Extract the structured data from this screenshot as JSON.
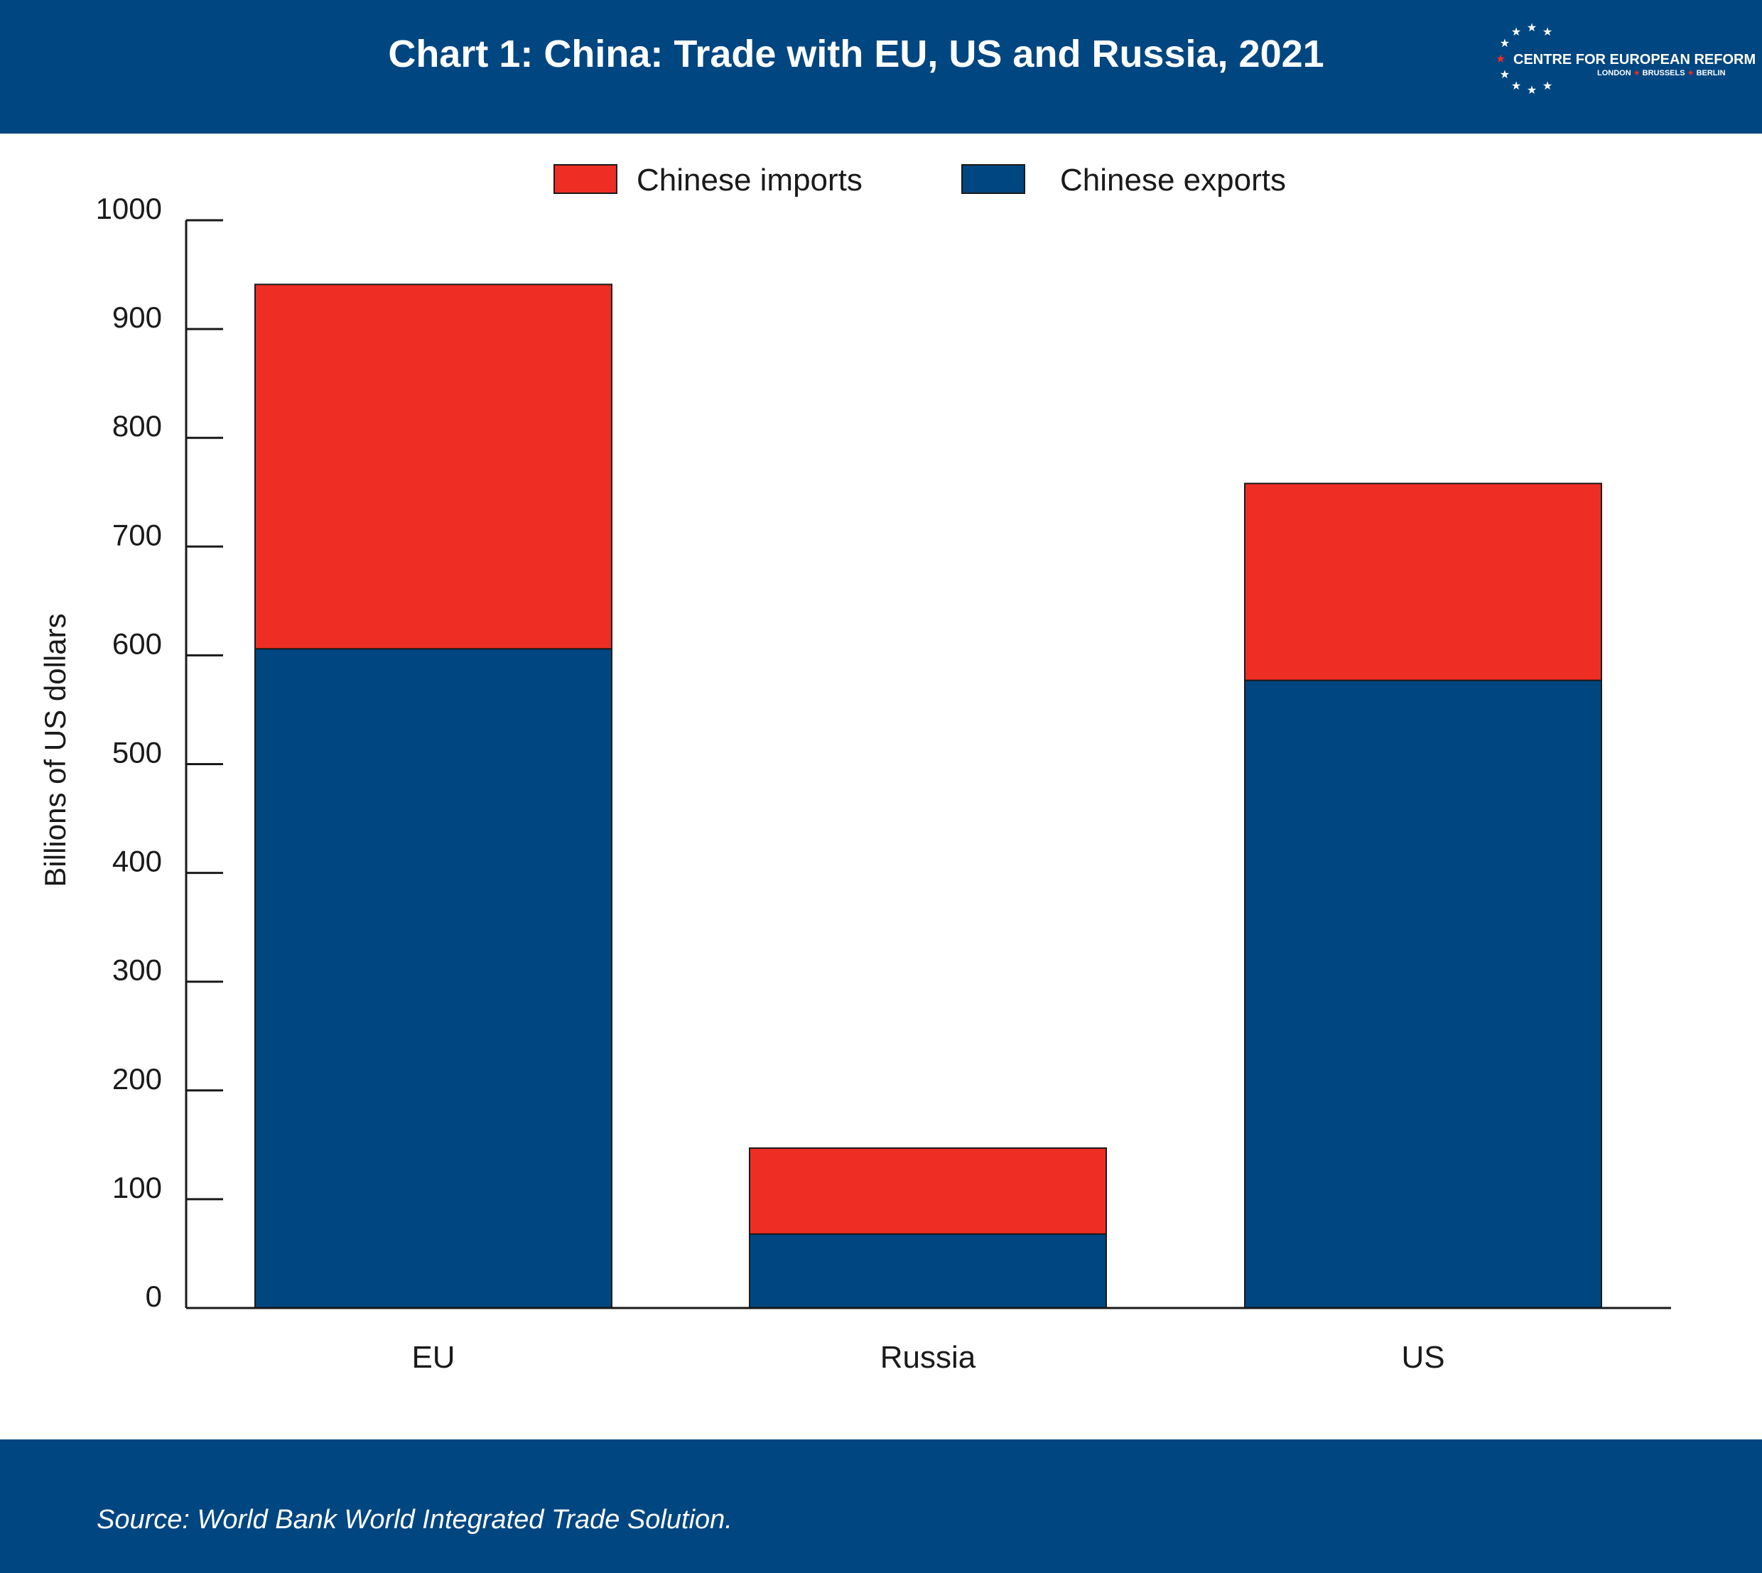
{
  "header": {
    "title": "Chart 1: China: Trade with EU, US and Russia, 2021",
    "logo": {
      "name": "CENTRE FOR EUROPEAN REFORM",
      "cities": [
        "LONDON",
        "BRUSSELS",
        "BERLIN"
      ],
      "accent_color": "#ee2d24"
    }
  },
  "footer": {
    "source": "Source: World Bank World Integrated Trade Solution."
  },
  "colors": {
    "brand_blue": "#004680",
    "imports_red": "#ee2d24"
  },
  "chart_data": {
    "type": "bar",
    "stacked": true,
    "title": "Chart 1: China: Trade with EU, US and Russia, 2021",
    "xlabel": "",
    "ylabel": "Billions of US dollars",
    "ylim": [
      0,
      1000
    ],
    "yticks": [
      0,
      100,
      200,
      300,
      400,
      500,
      600,
      700,
      800,
      900,
      1000
    ],
    "categories": [
      "EU",
      "Russia",
      "US"
    ],
    "series": [
      {
        "name": "Chinese exports",
        "color": "#004680",
        "values": [
          606,
          68,
          577
        ]
      },
      {
        "name": "Chinese imports",
        "color": "#ee2d24",
        "values": [
          335,
          79,
          181
        ]
      }
    ],
    "legend": {
      "position": "top-center",
      "order": [
        "Chinese imports",
        "Chinese exports"
      ]
    },
    "grid": false
  }
}
